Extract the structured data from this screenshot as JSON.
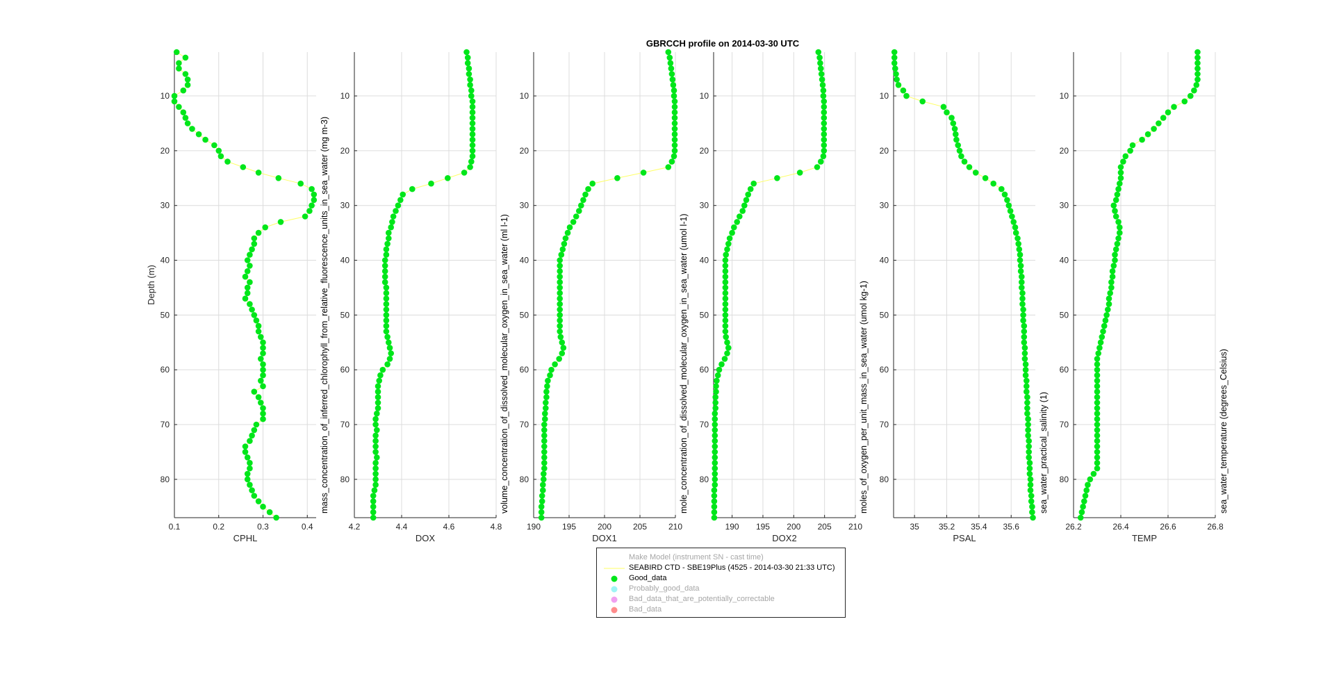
{
  "colors": {
    "good": "#00e61a",
    "line": "#ffff66",
    "probably_good": "#9ff5f5",
    "bad_correctable": "#f0a0f0",
    "bad": "#ff8c8c",
    "muted_text": "#a6a6a6",
    "grid": "#dcdcdc"
  },
  "chart_data": {
    "type": "line",
    "title": "GBRCCH profile on 2014-03-30 UTC",
    "ylabel": "Depth (m)",
    "y_reversed": true,
    "ylim": [
      2,
      87
    ],
    "yticks": [
      10,
      20,
      30,
      40,
      50,
      60,
      70,
      80
    ],
    "grid": true,
    "depth": [
      2,
      3,
      4,
      5,
      6,
      7,
      8,
      9,
      10,
      11,
      12,
      13,
      14,
      15,
      16,
      17,
      18,
      19,
      20,
      21,
      22,
      23,
      24,
      25,
      26,
      27,
      28,
      29,
      30,
      31,
      32,
      33,
      34,
      35,
      36,
      37,
      38,
      39,
      40,
      41,
      42,
      43,
      44,
      45,
      46,
      47,
      48,
      49,
      50,
      51,
      52,
      53,
      54,
      55,
      56,
      57,
      58,
      59,
      60,
      61,
      62,
      63,
      64,
      65,
      66,
      67,
      68,
      69,
      70,
      71,
      72,
      73,
      74,
      75,
      76,
      77,
      78,
      79,
      80,
      81,
      82,
      83,
      84,
      85,
      86,
      87
    ],
    "panels": [
      {
        "name": "CPHL",
        "xlabel": "CPHL",
        "ylabel_right": "mass_concentration_of_inferred_chlorophyll_from_relative_fluorescence_units_in_sea_water (mg m-3)",
        "xlim": [
          0.1,
          0.42
        ],
        "xticks": [
          "0.1",
          "0.2",
          "0.3",
          "0.4"
        ],
        "values": [
          0.105,
          0.125,
          0.11,
          0.11,
          0.125,
          0.13,
          0.13,
          0.12,
          0.1,
          0.1,
          0.11,
          0.12,
          0.125,
          0.13,
          0.14,
          0.155,
          0.17,
          0.19,
          0.2,
          0.205,
          0.22,
          0.255,
          0.29,
          0.335,
          0.385,
          0.41,
          0.415,
          0.415,
          0.41,
          0.405,
          0.395,
          0.34,
          0.305,
          0.29,
          0.28,
          0.28,
          0.275,
          0.27,
          0.265,
          0.27,
          0.265,
          0.26,
          0.27,
          0.265,
          0.265,
          0.26,
          0.27,
          0.275,
          0.28,
          0.285,
          0.29,
          0.29,
          0.295,
          0.3,
          0.3,
          0.3,
          0.295,
          0.3,
          0.3,
          0.3,
          0.295,
          0.3,
          0.28,
          0.29,
          0.295,
          0.3,
          0.3,
          0.3,
          0.285,
          0.28,
          0.275,
          0.27,
          0.26,
          0.26,
          0.265,
          0.27,
          0.27,
          0.265,
          0.265,
          0.27,
          0.275,
          0.28,
          0.29,
          0.3,
          0.315,
          0.33
        ]
      },
      {
        "name": "DOX",
        "xlabel": "DOX",
        "ylabel_right": "volume_concentration_of_dissolved_molecular_oxygen_in_sea_water (ml l-1)",
        "xlim": [
          4.2,
          4.8
        ],
        "xticks": [
          "4.2",
          "4.4",
          "4.6",
          "4.8"
        ],
        "values": [
          4.675,
          4.68,
          4.68,
          4.685,
          4.685,
          4.69,
          4.69,
          4.695,
          4.695,
          4.7,
          4.7,
          4.7,
          4.7,
          4.7,
          4.7,
          4.7,
          4.7,
          4.7,
          4.7,
          4.7,
          4.695,
          4.69,
          4.665,
          4.595,
          4.525,
          4.445,
          4.405,
          4.395,
          4.385,
          4.375,
          4.365,
          4.36,
          4.355,
          4.345,
          4.345,
          4.34,
          4.335,
          4.335,
          4.33,
          4.33,
          4.33,
          4.33,
          4.33,
          4.335,
          4.335,
          4.335,
          4.335,
          4.335,
          4.335,
          4.335,
          4.335,
          4.335,
          4.34,
          4.345,
          4.35,
          4.355,
          4.35,
          4.34,
          4.32,
          4.31,
          4.305,
          4.3,
          4.3,
          4.3,
          4.3,
          4.3,
          4.295,
          4.29,
          4.29,
          4.295,
          4.29,
          4.29,
          4.29,
          4.29,
          4.295,
          4.29,
          4.29,
          4.29,
          4.29,
          4.29,
          4.285,
          4.28,
          4.28,
          4.28,
          4.28,
          4.28
        ]
      },
      {
        "name": "DOX1",
        "xlabel": "DOX1",
        "ylabel_right": "mole_concentration_of_dissolved_molecular_oxygen_in_sea_water (umol l-1)",
        "xlim": [
          190,
          210
        ],
        "xticks": [
          "190",
          "195",
          "200",
          "205",
          "210"
        ],
        "values": [
          209.0,
          209.2,
          209.3,
          209.4,
          209.5,
          209.6,
          209.7,
          209.8,
          209.8,
          209.9,
          209.9,
          209.9,
          209.9,
          209.9,
          209.9,
          209.9,
          209.9,
          209.9,
          209.9,
          209.8,
          209.5,
          209.0,
          205.5,
          201.8,
          198.3,
          197.7,
          197.3,
          197.0,
          196.7,
          196.4,
          196.0,
          195.6,
          195.1,
          194.8,
          194.5,
          194.3,
          194.1,
          193.9,
          193.7,
          193.7,
          193.7,
          193.7,
          193.7,
          193.7,
          193.7,
          193.7,
          193.7,
          193.7,
          193.7,
          193.7,
          193.7,
          193.7,
          193.8,
          194.0,
          194.2,
          194.0,
          193.6,
          193.0,
          192.5,
          192.3,
          192.0,
          191.9,
          191.8,
          191.8,
          191.7,
          191.7,
          191.6,
          191.6,
          191.5,
          191.5,
          191.5,
          191.5,
          191.5,
          191.5,
          191.5,
          191.5,
          191.5,
          191.4,
          191.4,
          191.3,
          191.3,
          191.2,
          191.2,
          191.1,
          191.1,
          191.1
        ]
      },
      {
        "name": "DOX2",
        "xlabel": "DOX2",
        "ylabel_right": "moles_of_oxygen_per_unit_mass_in_sea_water (umol kg-1)",
        "xlim": [
          187,
          210
        ],
        "xticks": [
          "190",
          "195",
          "200",
          "205",
          "210"
        ],
        "values": [
          204.0,
          204.2,
          204.3,
          204.4,
          204.5,
          204.6,
          204.7,
          204.8,
          204.8,
          204.9,
          204.9,
          204.9,
          204.9,
          204.9,
          204.9,
          204.9,
          204.9,
          204.9,
          204.9,
          204.8,
          204.4,
          203.8,
          201.0,
          197.3,
          193.5,
          193.0,
          192.6,
          192.3,
          192.0,
          191.7,
          191.2,
          190.8,
          190.3,
          190.0,
          189.6,
          189.4,
          189.2,
          189.0,
          188.9,
          188.9,
          188.9,
          188.9,
          188.9,
          188.9,
          188.9,
          188.9,
          188.9,
          188.9,
          188.9,
          188.9,
          188.9,
          188.9,
          189.0,
          189.2,
          189.4,
          189.2,
          188.8,
          188.3,
          187.9,
          187.7,
          187.5,
          187.4,
          187.4,
          187.3,
          187.3,
          187.3,
          187.2,
          187.2,
          187.2,
          187.2,
          187.2,
          187.2,
          187.2,
          187.2,
          187.2,
          187.2,
          187.2,
          187.2,
          187.2,
          187.2,
          187.1,
          187.1,
          187.1,
          187.1,
          187.1,
          187.1
        ]
      },
      {
        "name": "PSAL",
        "xlabel": "PSAL",
        "ylabel_right": "sea_water_practical_salinity (1)",
        "xlim": [
          34.87,
          35.75
        ],
        "xticks": [
          "35",
          "35.2",
          "35.4",
          "35.6"
        ],
        "values": [
          34.875,
          34.875,
          34.875,
          34.88,
          34.885,
          34.89,
          34.9,
          34.93,
          34.95,
          35.05,
          35.18,
          35.2,
          35.23,
          35.24,
          35.25,
          35.255,
          35.26,
          35.27,
          35.28,
          35.29,
          35.31,
          35.34,
          35.38,
          35.44,
          35.49,
          35.54,
          35.56,
          35.575,
          35.585,
          35.595,
          35.605,
          35.615,
          35.625,
          35.63,
          35.64,
          35.645,
          35.65,
          35.655,
          35.655,
          35.66,
          35.66,
          35.665,
          35.665,
          35.665,
          35.67,
          35.67,
          35.67,
          35.675,
          35.675,
          35.675,
          35.68,
          35.68,
          35.68,
          35.68,
          35.685,
          35.685,
          35.685,
          35.69,
          35.69,
          35.69,
          35.695,
          35.695,
          35.695,
          35.7,
          35.7,
          35.7,
          35.7,
          35.705,
          35.705,
          35.705,
          35.705,
          35.71,
          35.71,
          35.71,
          35.71,
          35.715,
          35.715,
          35.715,
          35.72,
          35.72,
          35.72,
          35.725,
          35.725,
          35.73,
          35.73,
          35.735
        ]
      },
      {
        "name": "TEMP",
        "xlabel": "TEMP",
        "ylabel_right": "sea_water_temperature (degrees_Celsius)",
        "xlim": [
          26.2,
          26.8
        ],
        "xticks": [
          "26.2",
          "26.4",
          "26.6",
          "26.8"
        ],
        "values": [
          26.725,
          26.725,
          26.725,
          26.725,
          26.725,
          26.725,
          26.72,
          26.71,
          26.695,
          26.67,
          26.625,
          26.6,
          26.58,
          26.56,
          26.54,
          26.515,
          26.49,
          26.45,
          26.44,
          26.42,
          26.41,
          26.4,
          26.4,
          26.4,
          26.395,
          26.39,
          26.385,
          26.38,
          26.37,
          26.375,
          26.38,
          26.39,
          26.395,
          26.395,
          26.39,
          26.385,
          26.38,
          26.375,
          26.375,
          26.37,
          26.365,
          26.365,
          26.36,
          26.36,
          26.355,
          26.35,
          26.35,
          26.345,
          26.34,
          26.335,
          26.33,
          26.325,
          26.32,
          26.315,
          26.31,
          26.305,
          26.3,
          26.3,
          26.3,
          26.3,
          26.3,
          26.3,
          26.3,
          26.3,
          26.3,
          26.3,
          26.3,
          26.3,
          26.3,
          26.3,
          26.3,
          26.3,
          26.3,
          26.3,
          26.3,
          26.3,
          26.3,
          26.285,
          26.27,
          26.26,
          26.255,
          26.25,
          26.245,
          26.24,
          26.235,
          26.23
        ]
      }
    ]
  },
  "legend": {
    "items": [
      {
        "label": "Make Model (instrument SN - cast time)",
        "symbol": "none",
        "muted": true
      },
      {
        "label": "SEABIRD CTD - SBE19Plus (4525 - 2014-03-30 21:33 UTC)",
        "symbol": "line",
        "muted": false
      },
      {
        "label": "Good_data",
        "symbol": "good",
        "muted": false
      },
      {
        "label": "Probably_good_data",
        "symbol": "probably_good",
        "muted": true
      },
      {
        "label": "Bad_data_that_are_potentially_correctable",
        "symbol": "bad_correctable",
        "muted": true
      },
      {
        "label": "Bad_data",
        "symbol": "bad",
        "muted": true
      }
    ]
  }
}
